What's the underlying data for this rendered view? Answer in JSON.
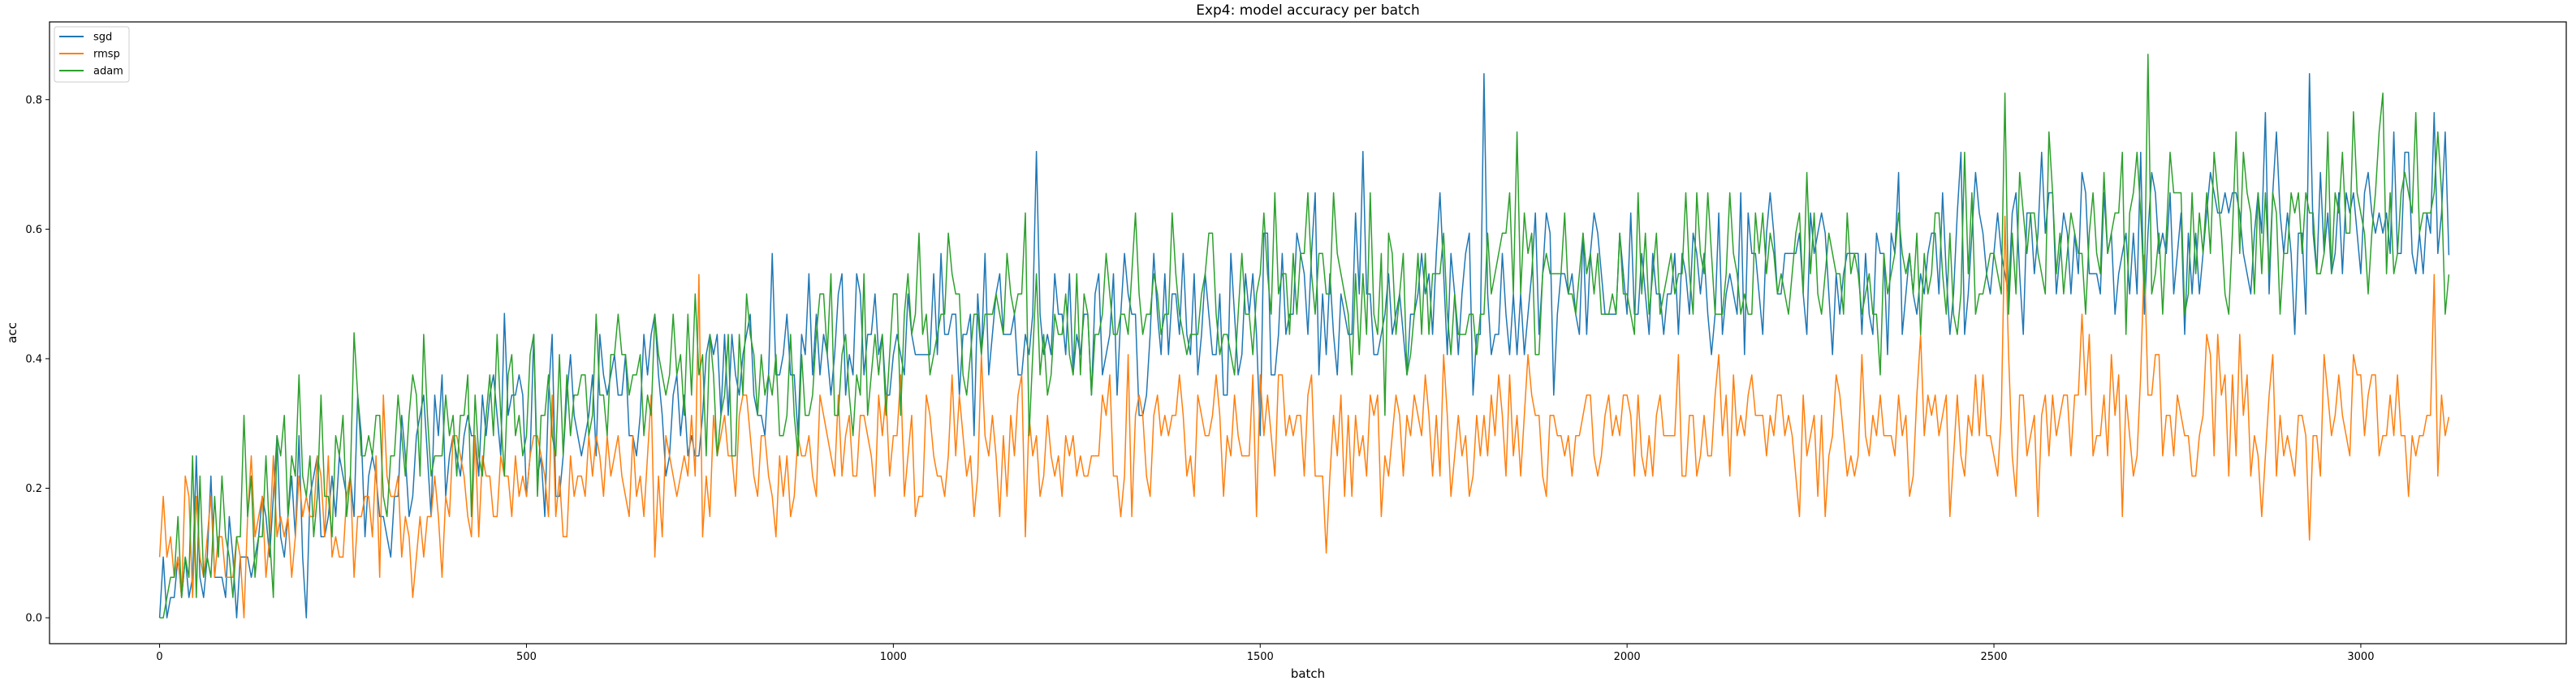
{
  "chart_data": {
    "type": "line",
    "title": "Exp4: model accuracy per batch",
    "xlabel": "batch",
    "ylabel": "acc",
    "xlim": [
      -150,
      3280
    ],
    "ylim": [
      -0.04,
      0.92
    ],
    "xticks": [
      0,
      500,
      1000,
      1500,
      2000,
      2500,
      3000
    ],
    "yticks": [
      0.0,
      0.2,
      0.4,
      0.6,
      0.8
    ],
    "ytick_labels": [
      "0.0",
      "0.2",
      "0.4",
      "0.6",
      "0.8"
    ],
    "grid": false,
    "legend_position": "top-left",
    "n_points": 625,
    "x_step": 5,
    "series": [
      {
        "name": "sgd",
        "color": "#1f77b4",
        "trend": [
          [
            0,
            0.07
          ],
          [
            300,
            0.22
          ],
          [
            700,
            0.35
          ],
          [
            1200,
            0.44
          ],
          [
            1700,
            0.49
          ],
          [
            2200,
            0.53
          ],
          [
            2700,
            0.58
          ],
          [
            3120,
            0.62
          ]
        ],
        "noise": 0.1,
        "seed": 11,
        "peaks": [
          [
            1805,
            0.84
          ],
          [
            2930,
            0.84
          ],
          [
            1195,
            0.72
          ],
          [
            3100,
            0.78
          ],
          [
            2870,
            0.78
          ],
          [
            470,
            0.47
          ],
          [
            1640,
            0.72
          ]
        ],
        "end_value": 0.56
      },
      {
        "name": "rmsp",
        "color": "#ff7f0e",
        "trend": [
          [
            0,
            0.12
          ],
          [
            200,
            0.15
          ],
          [
            500,
            0.22
          ],
          [
            900,
            0.25
          ],
          [
            1400,
            0.27
          ],
          [
            2000,
            0.29
          ],
          [
            2600,
            0.3
          ],
          [
            3120,
            0.3
          ]
        ],
        "noise": 0.085,
        "seed": 23,
        "peaks": [
          [
            115,
            0.0
          ],
          [
            735,
            0.53
          ],
          [
            2515,
            0.62
          ],
          [
            3100,
            0.53
          ],
          [
            2705,
            0.56
          ],
          [
            1590,
            0.1
          ],
          [
            2930,
            0.12
          ]
        ],
        "end_value": 0.31
      },
      {
        "name": "adam",
        "color": "#2ca02c",
        "trend": [
          [
            0,
            0.08
          ],
          [
            250,
            0.25
          ],
          [
            600,
            0.34
          ],
          [
            1000,
            0.42
          ],
          [
            1500,
            0.49
          ],
          [
            2000,
            0.54
          ],
          [
            2500,
            0.57
          ],
          [
            3120,
            0.62
          ]
        ],
        "noise": 0.1,
        "seed": 37,
        "peaks": [
          [
            2710,
            0.87
          ],
          [
            2515,
            0.81
          ],
          [
            3030,
            0.81
          ],
          [
            3075,
            0.78
          ],
          [
            1850,
            0.75
          ],
          [
            265,
            0.44
          ]
        ],
        "end_value": 0.53
      }
    ]
  }
}
